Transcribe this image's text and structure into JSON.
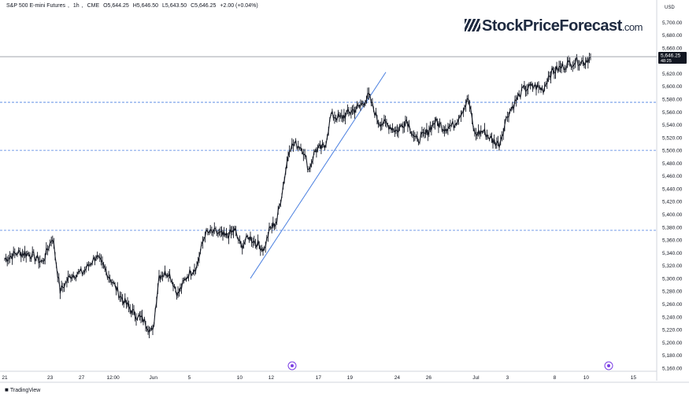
{
  "header": {
    "symbol": "S&P 500 E-mini Futures",
    "interval": "1h",
    "exchange": "CME",
    "open": "O5,644.25",
    "high": "H5,646.50",
    "low": "L5,643.50",
    "close": "C5,646.25",
    "change": "+2.00 (+0.04%)"
  },
  "watermark": {
    "name": "StockPriceForecast",
    "suffix": ".com"
  },
  "footer": {
    "brand": "TradingView"
  },
  "currency": "USD",
  "colors": {
    "candles": "#131722",
    "trendline": "#4a7fe0",
    "levels": "#4a7fe0",
    "price_label_bg": "#131722",
    "badge": "#7b3fe4"
  },
  "chart_data": {
    "type": "line",
    "instrument": "S&P 500 E-mini Futures, 1h",
    "y_axis": {
      "ticks": [
        5160,
        5180,
        5200,
        5220,
        5240,
        5260,
        5280,
        5300,
        5320,
        5340,
        5360,
        5380,
        5400,
        5420,
        5440,
        5460,
        5480,
        5500,
        5520,
        5540,
        5560,
        5580,
        5600,
        5620,
        5640,
        5660,
        5680,
        5700
      ],
      "range": [
        5155,
        5720
      ]
    },
    "x_axis": {
      "range": [
        0,
        100
      ],
      "ticks": [
        {
          "label": "21",
          "x": 0
        },
        {
          "label": "23",
          "x": 7.2
        },
        {
          "label": "27",
          "x": 12.2
        },
        {
          "label": "12:00",
          "x": 17.2
        },
        {
          "label": "Jun",
          "x": 23.6
        },
        {
          "label": "5",
          "x": 29.3
        },
        {
          "label": "10",
          "x": 37.3
        },
        {
          "label": "12",
          "x": 42.3
        },
        {
          "label": "17",
          "x": 49.8
        },
        {
          "label": "19",
          "x": 54.8
        },
        {
          "label": "24",
          "x": 62.3
        },
        {
          "label": "26",
          "x": 67.3
        },
        {
          "label": "Jul",
          "x": 74.8
        },
        {
          "label": "3",
          "x": 79.8
        },
        {
          "label": "8",
          "x": 87.3
        },
        {
          "label": "10",
          "x": 92.3
        },
        {
          "label": "15",
          "x": 99.8
        }
      ]
    },
    "series": [
      {
        "values": [
          {
            "x": 0.0,
            "y": 5330
          },
          {
            "x": 2.0,
            "y": 5340
          },
          {
            "x": 4.0,
            "y": 5338
          },
          {
            "x": 6.0,
            "y": 5325
          },
          {
            "x": 7.6,
            "y": 5365
          },
          {
            "x": 8.8,
            "y": 5280
          },
          {
            "x": 10.5,
            "y": 5305
          },
          {
            "x": 12.5,
            "y": 5310
          },
          {
            "x": 14.5,
            "y": 5335
          },
          {
            "x": 16.5,
            "y": 5305
          },
          {
            "x": 18.5,
            "y": 5270
          },
          {
            "x": 20.5,
            "y": 5245
          },
          {
            "x": 22.0,
            "y": 5235
          },
          {
            "x": 23.5,
            "y": 5215
          },
          {
            "x": 24.5,
            "y": 5305
          },
          {
            "x": 26.0,
            "y": 5310
          },
          {
            "x": 27.5,
            "y": 5275
          },
          {
            "x": 29.0,
            "y": 5305
          },
          {
            "x": 30.5,
            "y": 5320
          },
          {
            "x": 31.8,
            "y": 5370
          },
          {
            "x": 33.5,
            "y": 5372
          },
          {
            "x": 35.0,
            "y": 5365
          },
          {
            "x": 36.5,
            "y": 5375
          },
          {
            "x": 37.5,
            "y": 5350
          },
          {
            "x": 38.8,
            "y": 5365
          },
          {
            "x": 40.0,
            "y": 5355
          },
          {
            "x": 41.2,
            "y": 5345
          },
          {
            "x": 42.0,
            "y": 5375
          },
          {
            "x": 43.2,
            "y": 5390
          },
          {
            "x": 44.2,
            "y": 5445
          },
          {
            "x": 45.2,
            "y": 5505
          },
          {
            "x": 46.2,
            "y": 5510
          },
          {
            "x": 47.2,
            "y": 5505
          },
          {
            "x": 48.3,
            "y": 5470
          },
          {
            "x": 49.3,
            "y": 5500
          },
          {
            "x": 50.8,
            "y": 5505
          },
          {
            "x": 51.8,
            "y": 5555
          },
          {
            "x": 53.3,
            "y": 5550
          },
          {
            "x": 54.8,
            "y": 5560
          },
          {
            "x": 56.3,
            "y": 5568
          },
          {
            "x": 57.8,
            "y": 5585
          },
          {
            "x": 59.3,
            "y": 5545
          },
          {
            "x": 60.8,
            "y": 5540
          },
          {
            "x": 62.3,
            "y": 5530
          },
          {
            "x": 63.8,
            "y": 5548
          },
          {
            "x": 65.3,
            "y": 5515
          },
          {
            "x": 66.8,
            "y": 5525
          },
          {
            "x": 68.3,
            "y": 5545
          },
          {
            "x": 69.8,
            "y": 5535
          },
          {
            "x": 71.3,
            "y": 5540
          },
          {
            "x": 72.8,
            "y": 5565
          },
          {
            "x": 73.6,
            "y": 5580
          },
          {
            "x": 74.6,
            "y": 5525
          },
          {
            "x": 76.0,
            "y": 5530
          },
          {
            "x": 77.5,
            "y": 5515
          },
          {
            "x": 78.5,
            "y": 5510
          },
          {
            "x": 79.8,
            "y": 5555
          },
          {
            "x": 81.0,
            "y": 5575
          },
          {
            "x": 82.3,
            "y": 5595
          },
          {
            "x": 84.0,
            "y": 5600
          },
          {
            "x": 85.5,
            "y": 5595
          },
          {
            "x": 86.5,
            "y": 5620
          },
          {
            "x": 88.0,
            "y": 5628
          },
          {
            "x": 89.5,
            "y": 5635
          },
          {
            "x": 90.8,
            "y": 5640
          },
          {
            "x": 92.0,
            "y": 5638
          },
          {
            "x": 93.0,
            "y": 5646
          }
        ]
      }
    ],
    "horizontal_levels": [
      5375,
      5500,
      5575
    ],
    "current_price": {
      "value": 5646.25,
      "label": "5,646.25",
      "countdown": "48:25"
    },
    "trendline": {
      "from": {
        "x": 39.0,
        "y": 5300
      },
      "to": {
        "x": 60.5,
        "y": 5622
      }
    },
    "grid": false
  }
}
